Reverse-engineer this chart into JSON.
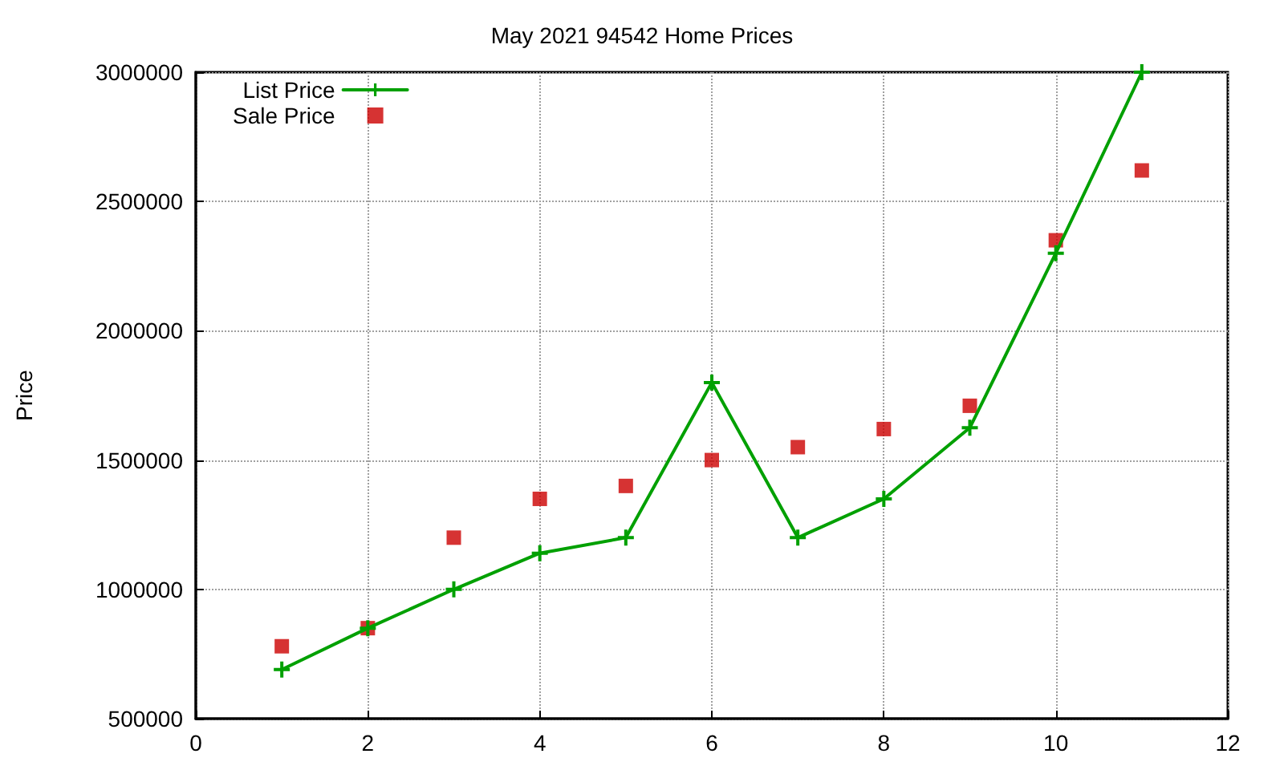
{
  "chart_data": {
    "type": "line",
    "title": "May 2021 94542 Home Prices",
    "ylabel": "Price",
    "x": [
      1,
      2,
      3,
      4,
      5,
      6,
      7,
      8,
      9,
      10,
      11
    ],
    "series": [
      {
        "name": "List Price",
        "type": "line",
        "color": "#00a000",
        "marker": "cross",
        "line_style": "solid",
        "values": [
          690000,
          850000,
          1000000,
          1140000,
          1200000,
          1800000,
          1200000,
          1350000,
          1625000,
          2300000,
          3000000
        ]
      },
      {
        "name": "Sale Price",
        "type": "scatter",
        "color": "#cc0000",
        "marker": "square",
        "values": [
          780000,
          850000,
          1200000,
          1350000,
          1400000,
          1500000,
          1550000,
          1620000,
          1710000,
          2350000,
          2620000
        ]
      }
    ],
    "xlim": [
      0,
      12
    ],
    "xticks": [
      0,
      2,
      4,
      6,
      8,
      10,
      12
    ],
    "ylim": [
      500000,
      3000000
    ],
    "yticks": [
      500000,
      1000000,
      1500000,
      2000000,
      2500000,
      3000000
    ],
    "grid": true,
    "legend": "top left"
  }
}
